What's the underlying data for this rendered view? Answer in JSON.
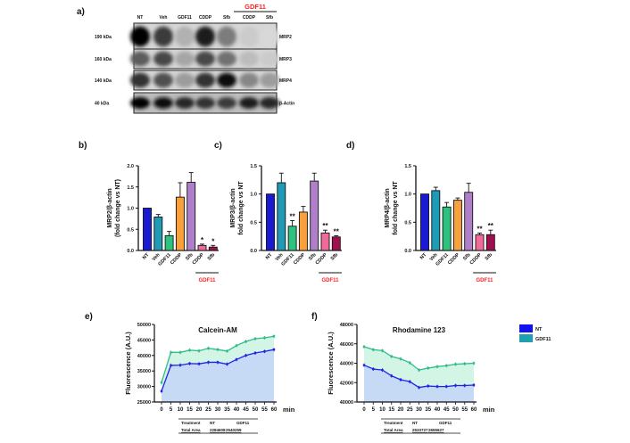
{
  "panel_a": {
    "label": "a)",
    "group_label": "GDF11",
    "lanes": [
      "NT",
      "Veh",
      "GDF11",
      "CDDP",
      "Sfb",
      "CDDP",
      "Sfb"
    ],
    "blots": [
      {
        "kda": "190 kDa",
        "protein": "MRP2",
        "intensity": [
          1.0,
          0.75,
          0.2,
          0.9,
          0.45,
          0.08,
          0.02
        ]
      },
      {
        "kda": "160 kDa",
        "protein": "MRP3",
        "intensity": [
          0.6,
          0.7,
          0.25,
          0.7,
          0.5,
          0.15,
          0.08
        ]
      },
      {
        "kda": "140 kDa",
        "protein": "MRP4",
        "intensity": [
          0.8,
          0.65,
          0.3,
          0.8,
          0.95,
          0.4,
          0.3
        ]
      },
      {
        "kda": "40 kDa",
        "protein": "β-Actin",
        "intensity": [
          1.0,
          0.95,
          0.85,
          0.8,
          0.75,
          0.9,
          0.85
        ]
      }
    ]
  },
  "chart_data": [
    {
      "panel": "b)",
      "type": "bar",
      "categories": [
        "NT",
        "Veh",
        "GDF11",
        "CDDP",
        "Sfb",
        "CDDP",
        "Sfb"
      ],
      "group_label": "GDF11",
      "ylabel": [
        "MRP2/β-actin",
        "(fold change vs NT)"
      ],
      "ylim": [
        0,
        2.0
      ],
      "yticks": [
        "0.0",
        "0.5",
        "1.0",
        "1.5",
        "2.0"
      ],
      "values": [
        1.0,
        0.79,
        0.35,
        1.26,
        1.61,
        0.12,
        0.08
      ],
      "errors": [
        0,
        0.06,
        0.1,
        0.34,
        0.23,
        0.03,
        0.04
      ],
      "significance": [
        "",
        "",
        "",
        "",
        "",
        "*",
        "*"
      ]
    },
    {
      "panel": "c)",
      "type": "bar",
      "categories": [
        "NT",
        "Veh",
        "GDF11",
        "CDDP",
        "Sfb",
        "CDDP",
        "Sfb"
      ],
      "group_label": "GDF11",
      "ylabel": [
        "MRP3/β-actin",
        "fold change vs NT"
      ],
      "ylim": [
        0,
        1.5
      ],
      "yticks": [
        "0.0",
        "0.5",
        "1.0",
        "1.5"
      ],
      "values": [
        1.0,
        1.2,
        0.43,
        0.68,
        1.23,
        0.31,
        0.24
      ],
      "errors": [
        0,
        0.17,
        0.1,
        0.1,
        0.14,
        0.05,
        0.02
      ],
      "significance": [
        "",
        "",
        "**",
        "",
        "",
        "**",
        "**"
      ]
    },
    {
      "panel": "d)",
      "type": "bar",
      "categories": [
        "NT",
        "Veh",
        "GDF11",
        "CDDP",
        "Sfb",
        "CDDP",
        "Sfb"
      ],
      "group_label": "GDF11",
      "ylabel": [
        "MRP4/β-actin",
        "fold change vs NT"
      ],
      "ylim": [
        0,
        1.5
      ],
      "yticks": [
        "0.0",
        "0.5",
        "1.0",
        "1.5"
      ],
      "values": [
        1.0,
        1.06,
        0.77,
        0.89,
        1.03,
        0.28,
        0.28
      ],
      "errors": [
        0,
        0.06,
        0.08,
        0.04,
        0.16,
        0.03,
        0.08
      ],
      "significance": [
        "",
        "",
        "",
        "",
        "",
        "**",
        "**"
      ]
    },
    {
      "panel": "e)",
      "type": "area",
      "title": "Calcein-AM",
      "ylabel": "Fluorescence (A.U.)",
      "xunit": "min",
      "x": [
        0,
        5,
        10,
        15,
        20,
        25,
        30,
        35,
        40,
        45,
        50,
        55,
        60
      ],
      "ylim": [
        25000,
        50000
      ],
      "yticks": [
        "25000",
        "30000",
        "35000",
        "40000",
        "45000",
        "50000"
      ],
      "series": [
        {
          "name": "NT",
          "values": [
            28500,
            36800,
            36900,
            37400,
            37300,
            37800,
            37800,
            37200,
            38700,
            40000,
            40800,
            41300,
            41900
          ]
        },
        {
          "name": "GDF11",
          "values": [
            31300,
            41000,
            41000,
            41700,
            41500,
            42300,
            41900,
            41400,
            43200,
            44500,
            45400,
            45700,
            46200
          ]
        }
      ],
      "table": {
        "header": [
          "Treatment",
          "NT",
          "GDF11"
        ],
        "row": [
          "Total Area",
          "2284608",
          "2540259"
        ]
      }
    },
    {
      "panel": "f)",
      "type": "area",
      "title": "Rhodamine 123",
      "ylabel": "Fluorescence (A.U.)",
      "xunit": "min",
      "x": [
        0,
        5,
        10,
        15,
        20,
        25,
        30,
        35,
        40,
        45,
        50,
        55,
        60
      ],
      "ylim": [
        40000,
        48000
      ],
      "yticks": [
        "40000",
        "42000",
        "44000",
        "46000",
        "48000"
      ],
      "series": [
        {
          "name": "NT",
          "values": [
            43800,
            43400,
            43300,
            42700,
            42300,
            42100,
            41500,
            41650,
            41600,
            41600,
            41700,
            41700,
            41750
          ]
        },
        {
          "name": "GDF11",
          "values": [
            45700,
            45400,
            45300,
            44700,
            44450,
            44050,
            43300,
            43500,
            43650,
            43750,
            43900,
            43950,
            44000
          ]
        }
      ],
      "table": {
        "header": [
          "Treatment",
          "NT",
          "GDF11"
        ],
        "row": [
          "Total Area",
          "2533727",
          "2655627"
        ]
      }
    }
  ],
  "legend": [
    {
      "name": "NT",
      "color": "#1212f0"
    },
    {
      "name": "GDF11",
      "color": "#1fa0b0"
    }
  ],
  "colors": {
    "bars": [
      "#1a1ad0",
      "#1f9bb5",
      "#2ec27e",
      "#f7a03c",
      "#b07fc9",
      "#f06b9a",
      "#a0104f"
    ],
    "nt_line": "#2222e6",
    "gdf11_line": "#2ebd8a",
    "nt_fill": "#c6d9f5",
    "gdf11_fill": "#d3f5e6",
    "group_label": "#ff2020"
  }
}
